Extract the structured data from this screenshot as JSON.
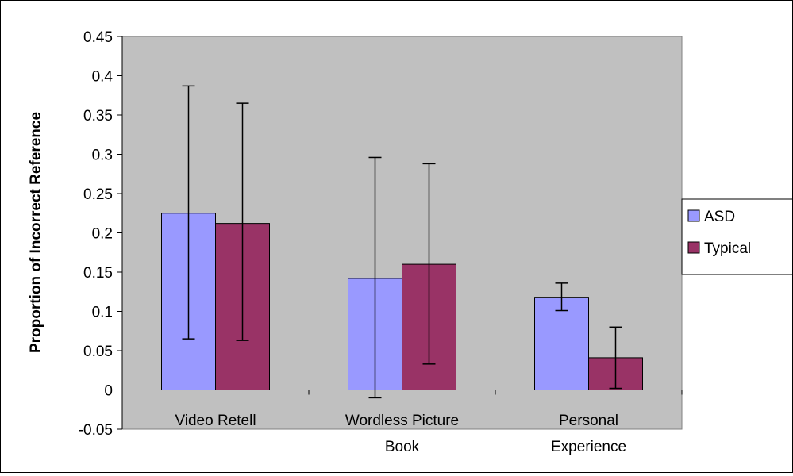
{
  "chart_data": {
    "type": "bar",
    "title": "",
    "xlabel": "",
    "ylabel": "Proportion of Incorrect Reference",
    "ylim": [
      -0.05,
      0.45
    ],
    "yticks": [
      "0.45",
      "0.4",
      "0.35",
      "0.3",
      "0.25",
      "0.2",
      "0.15",
      "0.1",
      "0.05",
      "0",
      "-0.05"
    ],
    "categories": [
      {
        "line1": "Video Retell",
        "line2": ""
      },
      {
        "line1": "Wordless Picture",
        "line2": "Book"
      },
      {
        "line1": "Personal",
        "line2": "Experience"
      }
    ],
    "series": [
      {
        "name": "ASD",
        "color": "#9999ff",
        "values": [
          0.225,
          0.142,
          0.118
        ],
        "err_low": [
          0.065,
          -0.01,
          0.101
        ],
        "err_high": [
          0.387,
          0.296,
          0.136
        ]
      },
      {
        "name": "Typical",
        "color": "#993366",
        "values": [
          0.212,
          0.16,
          0.041
        ],
        "err_low": [
          0.063,
          0.033,
          0.002
        ],
        "err_high": [
          0.365,
          0.288,
          0.08
        ]
      }
    ],
    "plot_background": "#c0c0c0",
    "grid": false,
    "legend_position": "right"
  }
}
